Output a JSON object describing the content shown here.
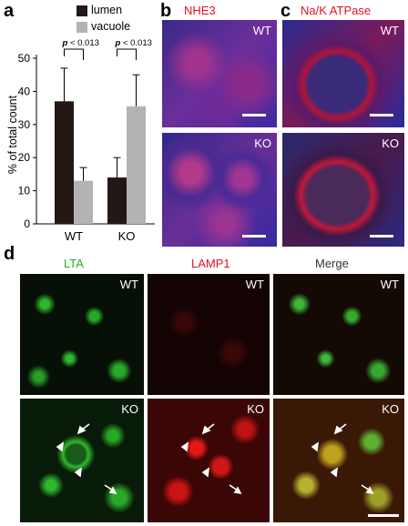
{
  "panel_a": {
    "letter": "a",
    "legend": [
      {
        "label": "lumen",
        "color": "#231815"
      },
      {
        "label": "vacuole",
        "color": "#b3b3b3"
      }
    ],
    "pvalue_prefix": "p",
    "pvalue_text": "< 0.013"
  },
  "chart_data": {
    "type": "bar",
    "categories": [
      "WT",
      "KO"
    ],
    "series": [
      {
        "name": "lumen",
        "values": [
          37,
          14
        ],
        "errors": [
          10,
          6
        ],
        "color": "#231815"
      },
      {
        "name": "vacuole",
        "values": [
          13,
          35.5
        ],
        "errors": [
          4,
          9.5
        ],
        "color": "#b3b3b3"
      }
    ],
    "ylabel": "% of total count",
    "ylim": [
      0,
      50
    ],
    "yticks": [
      0,
      10,
      20,
      30,
      40,
      50
    ],
    "annotations": [
      "p < 0.013",
      "p < 0.013"
    ],
    "grid": false,
    "legend_position": "top"
  },
  "panel_b": {
    "letter": "b",
    "title": "NHE3",
    "top_label": "WT",
    "bottom_label": "KO"
  },
  "panel_c": {
    "letter": "c",
    "title": "Na/K ATPase",
    "top_label": "WT",
    "bottom_label": "KO"
  },
  "panel_d": {
    "letter": "d",
    "col1_title": "LTA",
    "col2_title": "LAMP1",
    "col3_title": "Merge",
    "row1_label": "WT",
    "row2_label": "KO"
  },
  "colors": {
    "red": "#e8101e",
    "green": "#1fb21f",
    "blue": "#2a2aa0"
  }
}
